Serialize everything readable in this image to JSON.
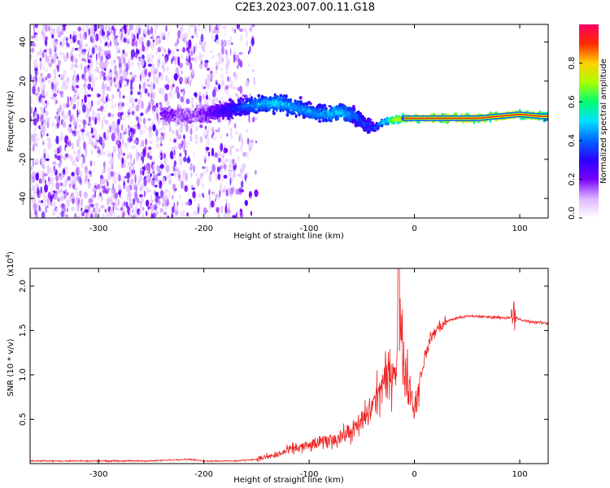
{
  "title": "C2E3.2023.007.00.11.G18",
  "chart_data": [
    {
      "type": "heatmap",
      "xlabel": "Height of straight line (km)",
      "ylabel": "Frequency (Hz)",
      "xlim": [
        -365,
        127
      ],
      "ylim": [
        -50,
        49
      ],
      "xticks": [
        -300,
        -200,
        -100,
        0,
        100
      ],
      "yticks": [
        -40,
        -20,
        0,
        20,
        40
      ],
      "colorbar": {
        "label": "Normalized spectral amplitude",
        "range": [
          0,
          1
        ],
        "ticks": [
          "0.0",
          "0.2",
          "0.4",
          "0.6",
          "0.8"
        ],
        "colors": [
          "#ffffff",
          "#dcb6ff",
          "#7a00ff",
          "#2a00ff",
          "#0066ff",
          "#00e0ff",
          "#00ff70",
          "#a8ff00",
          "#ffd000",
          "#ff2a00",
          "#ff0066"
        ]
      },
      "ridge": {
        "x": [
          -235,
          -210,
          -170,
          -150,
          -130,
          -110,
          -90,
          -70,
          -55,
          -45,
          -38,
          -30,
          -20,
          -10,
          0,
          30,
          60,
          80,
          100,
          120,
          127
        ],
        "freq": [
          3,
          2,
          6,
          8,
          9,
          6,
          3,
          4,
          2,
          -3,
          -4,
          -1,
          0,
          1,
          1,
          1,
          1,
          2,
          3,
          2,
          2
        ],
        "amplitude": [
          0.2,
          0.15,
          0.35,
          0.45,
          0.5,
          0.45,
          0.45,
          0.5,
          0.4,
          0.35,
          0.35,
          0.5,
          0.7,
          0.85,
          0.9,
          0.95,
          0.95,
          0.9,
          0.9,
          0.85,
          0.8
        ]
      }
    },
    {
      "type": "line",
      "xlabel": "Height of straight line (km)",
      "ylabel": "SNR (10 * v/v)",
      "yunit": "(x10",
      "yunit_exp": "4",
      "yunit_close": ")",
      "xlim": [
        -365,
        127
      ],
      "ylim": [
        0,
        2.2
      ],
      "xticks": [
        -300,
        -200,
        -100,
        0,
        100
      ],
      "yticks": [
        "0.5",
        "1.0",
        "1.5",
        "2.0"
      ],
      "ytick_values": [
        0.5,
        1.0,
        1.5,
        2.0
      ],
      "series": [
        {
          "color": "#ee2222",
          "x": [
            -365,
            -320,
            -280,
            -250,
            -215,
            -200,
            -170,
            -150,
            -130,
            -115,
            -100,
            -85,
            -70,
            -55,
            -45,
            -38,
            -30,
            -22,
            -17,
            -15,
            -12,
            -8,
            -3,
            0,
            5,
            10,
            15,
            20,
            30,
            40,
            50,
            60,
            70,
            80,
            90,
            95,
            100,
            110,
            127
          ],
          "y": [
            0.03,
            0.03,
            0.03,
            0.03,
            0.05,
            0.03,
            0.03,
            0.05,
            0.1,
            0.17,
            0.2,
            0.25,
            0.3,
            0.4,
            0.55,
            0.7,
            0.9,
            1.0,
            1.15,
            1.9,
            1.3,
            1.0,
            0.8,
            0.6,
            0.95,
            1.2,
            1.4,
            1.5,
            1.6,
            1.64,
            1.66,
            1.66,
            1.65,
            1.65,
            1.64,
            1.66,
            1.62,
            1.6,
            1.58
          ]
        }
      ]
    }
  ]
}
